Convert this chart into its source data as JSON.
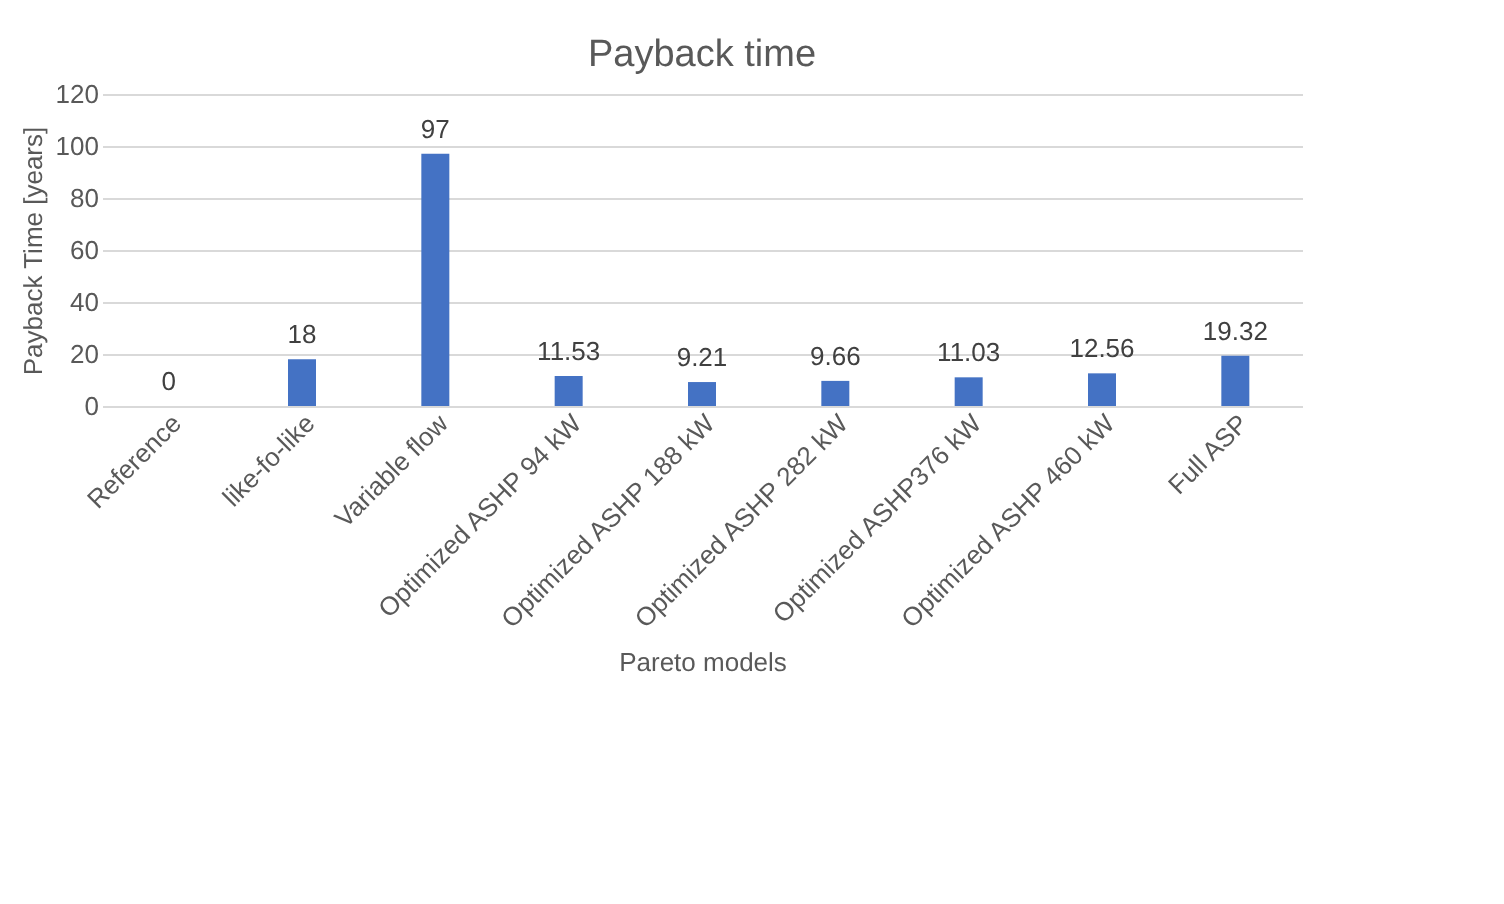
{
  "chart_data": {
    "type": "bar",
    "title": "Payback time",
    "xlabel": "Pareto models",
    "ylabel": "Payback Time [years]",
    "categories": [
      "Reference",
      "like-fo-like",
      "Variable flow",
      "Optimized ASHP 94 kW",
      "Optimized ASHP 188 kW",
      "Optimized ASHP 282 kW",
      "Optimized ASHP376 kW",
      "Optimized ASHP 460 kW",
      "Full ASP"
    ],
    "values": [
      0,
      18,
      97,
      11.53,
      9.21,
      9.66,
      11.03,
      12.56,
      19.32
    ],
    "color": "#4472c4",
    "ylim": [
      0,
      120
    ],
    "yticks": [
      0,
      20,
      40,
      60,
      80,
      100,
      120
    ],
    "grid": "y",
    "data_labels": true
  }
}
